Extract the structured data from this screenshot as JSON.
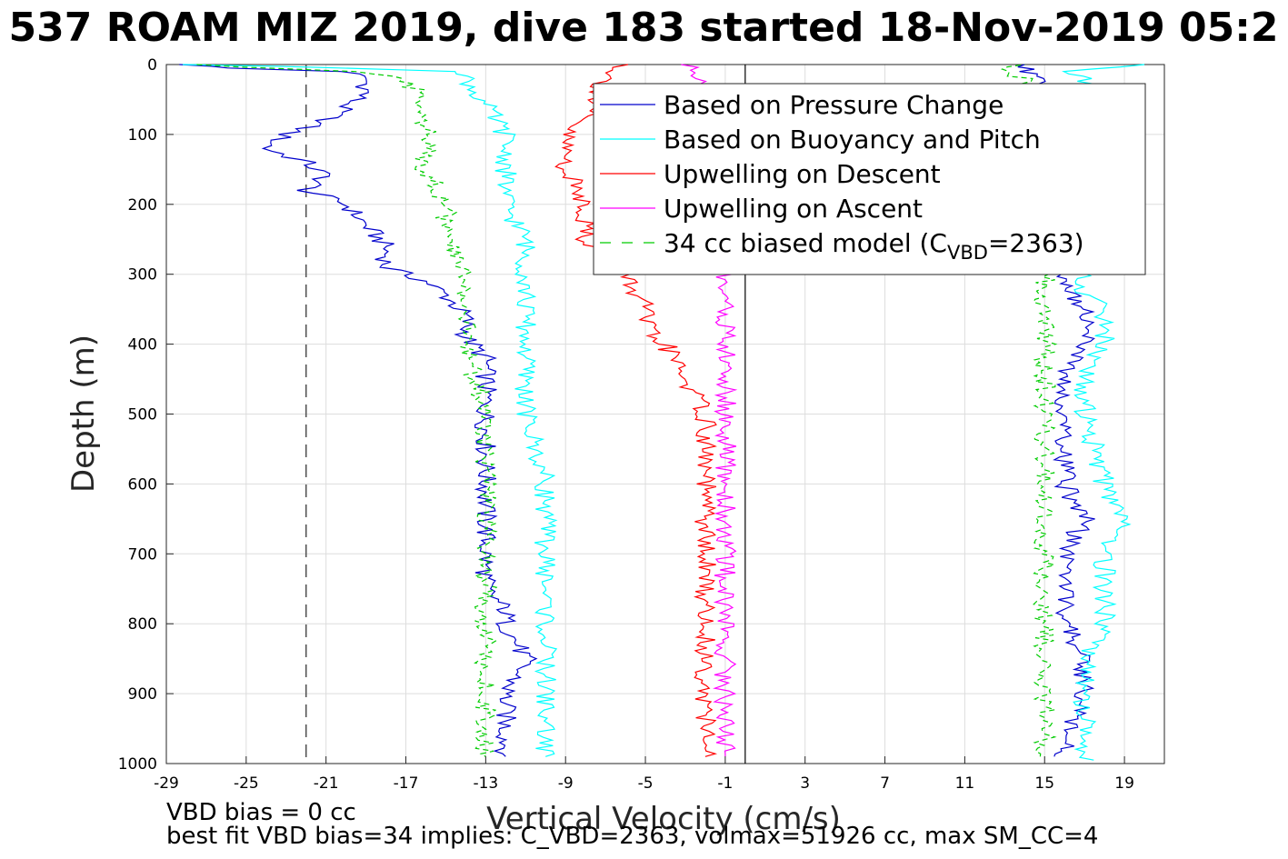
{
  "chart_data": {
    "type": "line",
    "title": "537 ROAM MIZ 2019, dive 183 started 18-Nov-2019 05:2",
    "xlabel": "Vertical Velocity (cm/s)",
    "ylabel": "Depth (m)",
    "xlim": [
      -29,
      21
    ],
    "ylim": [
      0,
      1000
    ],
    "y_reversed": true,
    "grid": true,
    "legend_position": "top-right",
    "xticks": [
      -29,
      -25,
      -21,
      -17,
      -13,
      -9,
      -5,
      -1,
      3,
      7,
      11,
      15,
      19
    ],
    "yticks": [
      0,
      100,
      200,
      300,
      400,
      500,
      600,
      700,
      800,
      900,
      1000
    ],
    "reference_lines": [
      {
        "orientation": "vertical",
        "x": -22,
        "style": "dashed",
        "color": "#555555"
      },
      {
        "orientation": "vertical",
        "x": 0,
        "style": "solid",
        "color": "#000000"
      }
    ],
    "series": [
      {
        "name": "Based on Pressure Change",
        "color": "#0000cc",
        "style": "solid",
        "descent": {
          "depth": [
            0,
            5,
            10,
            20,
            40,
            60,
            80,
            100,
            120,
            140,
            160,
            180,
            200,
            230,
            260,
            290,
            310,
            330,
            360,
            390,
            420,
            450,
            480,
            500,
            550,
            600,
            650,
            700,
            750,
            780,
            800,
            850,
            900,
            950,
            990
          ],
          "velocity": [
            -28,
            -26,
            -20,
            -19,
            -19,
            -20,
            -21,
            -23,
            -24,
            -22,
            -21,
            -22,
            -20,
            -19,
            -18,
            -18,
            -16,
            -15,
            -14,
            -14,
            -13,
            -13,
            -13,
            -13,
            -13,
            -13,
            -13,
            -13,
            -13,
            -12,
            -12,
            -11,
            -12,
            -12,
            -12
          ]
        },
        "ascent": {
          "depth": [
            990,
            960,
            900,
            850,
            800,
            750,
            700,
            650,
            600,
            550,
            500,
            450,
            400,
            380,
            350,
            320,
            310,
            300,
            20,
            10,
            0
          ],
          "velocity": [
            16,
            16,
            17,
            17,
            16,
            16,
            16,
            17,
            16,
            16,
            16,
            16,
            17,
            17,
            17,
            16,
            16,
            16,
            15,
            14,
            14
          ]
        }
      },
      {
        "name": "Based on Buoyancy and Pitch",
        "color": "#00ffff",
        "style": "solid",
        "descent": {
          "depth": [
            0,
            5,
            10,
            20,
            60,
            100,
            200,
            250,
            300,
            400,
            500,
            600,
            700,
            800,
            900,
            990
          ],
          "velocity": [
            -28,
            -20,
            -14,
            -14,
            -13,
            -12,
            -12,
            -11,
            -11,
            -11,
            -11,
            -10,
            -10,
            -10,
            -10,
            -10
          ]
        },
        "ascent": {
          "depth": [
            995,
            960,
            900,
            850,
            800,
            700,
            650,
            600,
            500,
            450,
            400,
            380,
            350,
            330,
            20,
            10,
            0
          ],
          "velocity": [
            17,
            17,
            17,
            17,
            18,
            18,
            19,
            18,
            17,
            17,
            18,
            18,
            18,
            17,
            17,
            16,
            20
          ]
        }
      },
      {
        "name": "Upwelling on Descent",
        "color": "#ff0000",
        "style": "solid",
        "depth": [
          0,
          20,
          70,
          100,
          150,
          200,
          250,
          300,
          350,
          380,
          400,
          450,
          500,
          550,
          600,
          650,
          700,
          750,
          800,
          850,
          900,
          950,
          990
        ],
        "velocity": [
          -6,
          -7,
          -8,
          -9,
          -9,
          -8,
          -8,
          -6,
          -5,
          -5,
          -4,
          -3,
          -2,
          -2,
          -2,
          -2,
          -2,
          -2,
          -2,
          -2,
          -2,
          -2,
          -2
        ]
      },
      {
        "name": "Upwelling on Ascent",
        "color": "#ff00ff",
        "style": "solid",
        "depth": [
          0,
          20,
          300,
          350,
          380,
          400,
          450,
          500,
          550,
          600,
          650,
          700,
          750,
          800,
          850,
          900,
          950,
          990
        ],
        "velocity": [
          -3,
          -2,
          -1,
          -1,
          -1,
          -1,
          -1,
          -1,
          -1,
          -1,
          -1,
          -1,
          -1,
          -1,
          -1,
          -1,
          -1,
          -1
        ]
      },
      {
        "name": "34 cc biased model (C_VBD=2363)",
        "color": "#00cc00",
        "style": "dashed",
        "descent": {
          "depth": [
            0,
            10,
            20,
            60,
            100,
            150,
            200,
            250,
            300,
            400,
            500,
            600,
            700,
            800,
            900,
            990
          ],
          "velocity": [
            -28,
            -20,
            -17,
            -16,
            -16,
            -16,
            -15,
            -15,
            -14,
            -14,
            -13,
            -13,
            -13,
            -13,
            -13,
            -13
          ]
        },
        "ascent": {
          "depth": [
            990,
            950,
            900,
            800,
            700,
            600,
            500,
            430,
            400,
            320,
            300,
            20,
            10,
            0
          ],
          "velocity": [
            15,
            15,
            15,
            15,
            15,
            15,
            15,
            15,
            15,
            15,
            15,
            14,
            13,
            14
          ]
        }
      }
    ],
    "legend": {
      "entries": [
        {
          "label": "Based on Pressure Change",
          "color": "#0000cc",
          "style": "solid"
        },
        {
          "label": "Based on Buoyancy and Pitch",
          "color": "#00ffff",
          "style": "solid"
        },
        {
          "label": "Upwelling on Descent",
          "color": "#ff0000",
          "style": "solid"
        },
        {
          "label": "Upwelling on Ascent",
          "color": "#ff00ff",
          "style": "solid"
        },
        {
          "label_prefix": "34 cc biased model (C",
          "label_sub": "VBD",
          "label_suffix": "=2363)",
          "color": "#00cc00",
          "style": "dashed"
        }
      ]
    },
    "annotations": [
      "VBD bias = 0 cc",
      "best fit VBD bias=34 implies: C_VBD=2363, volmax=51926 cc, max SM_CC=4"
    ]
  }
}
